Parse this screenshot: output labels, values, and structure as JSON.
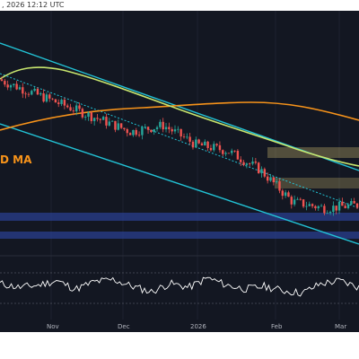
{
  "header": {
    "timestamp": ", 2026 12:12 UTC"
  },
  "chart_data": {
    "type": "candlestick",
    "annotations": {
      "ma_label": "D MA"
    },
    "x_tick_labels": [
      "Nov",
      "Dec",
      "2026",
      "Feb",
      "Mar"
    ],
    "colors": {
      "background": "#131722",
      "up": "#26a69a",
      "down": "#ef5350",
      "ma_fast": "#c8e66e",
      "ma_slow": "#f7931a",
      "channel": "#22c3d6",
      "zone_supply": "#c8b46e",
      "zone_demand": "#2a3f8f",
      "oscillator": "#ffffff"
    },
    "series": [
      {
        "name": "candles",
        "approx_trend": [
          100,
          96,
          92,
          88,
          84,
          86,
          80,
          78,
          72,
          62,
          60,
          61
        ]
      }
    ],
    "oscillator": {
      "approx_values": [
        55,
        48,
        52,
        60,
        45,
        58,
        62,
        50,
        40,
        55,
        48,
        65,
        52,
        45,
        50,
        42,
        38,
        55,
        60,
        48
      ]
    }
  }
}
